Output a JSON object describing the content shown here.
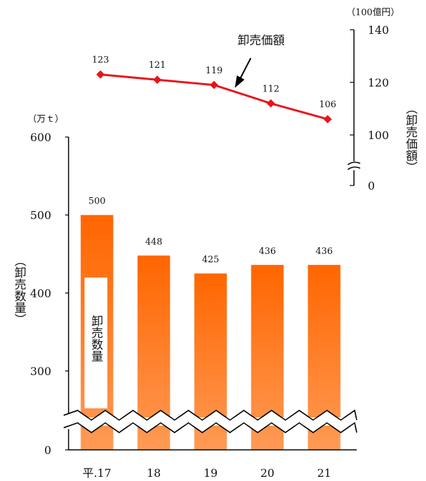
{
  "chart_data": {
    "type": "bar+line",
    "categories": [
      "平.17",
      "18",
      "19",
      "20",
      "21"
    ],
    "series": [
      {
        "name": "卸売数量",
        "type": "bar",
        "axis": "left",
        "values": [
          500,
          448,
          425,
          436,
          436
        ]
      },
      {
        "name": "卸売価額",
        "type": "line",
        "axis": "right",
        "values": [
          123,
          121,
          119,
          112,
          106
        ]
      }
    ],
    "left_axis": {
      "unit": "（万ｔ）",
      "label": "（卸売数量）",
      "ticks": [
        "0",
        "300",
        "400",
        "500",
        "600"
      ],
      "range": [
        300,
        600
      ],
      "broken": true
    },
    "right_axis": {
      "unit": "（100億円）",
      "label": "（卸売価額）",
      "ticks": [
        "0",
        "100",
        "120",
        "140"
      ],
      "range": [
        100,
        140
      ],
      "broken": true
    },
    "annotation": "卸売価額",
    "bar_inner_label": "卸売数量",
    "colors": {
      "bar_top": "#ff6600",
      "bar_bottom": "#ff9a55",
      "line": "#e8141b",
      "axis": "#000000"
    }
  }
}
